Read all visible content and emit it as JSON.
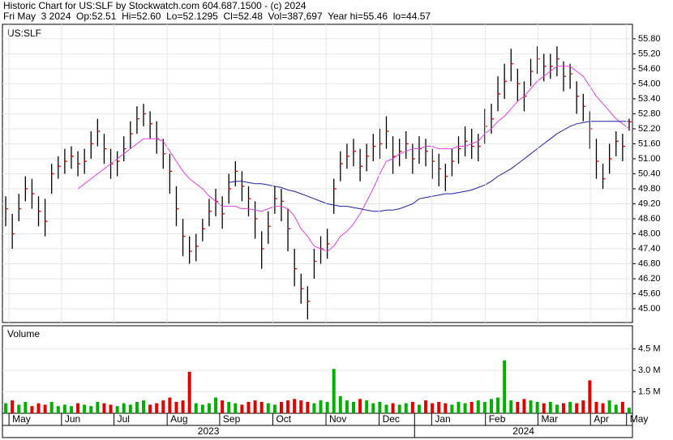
{
  "chart_data": [
    {
      "type": "ohlc",
      "title": "Historic Chart for US:SLF by Stockwatch.com 604.687.1500 - (c) 2024",
      "subtitle": "Fri May  3 2024  Op:52.51  Hi=52.60  Lo=52.1295  Cl=52.48  Vol=387,697  Year hi=55.46  lo=44.57",
      "label": "US:SLF",
      "xlim": [
        -0.5,
        95.5
      ],
      "ylim": [
        44.45,
        56.38
      ],
      "yticks": [
        {
          "value": 45.0,
          "label": "45.00"
        },
        {
          "value": 45.6,
          "label": "45.60"
        },
        {
          "value": 46.2,
          "label": "46.20"
        },
        {
          "value": 46.8,
          "label": "46.80"
        },
        {
          "value": 47.4,
          "label": "47.40"
        },
        {
          "value": 48.0,
          "label": "48.00"
        },
        {
          "value": 48.6,
          "label": "48.60"
        },
        {
          "value": 49.2,
          "label": "49.20"
        },
        {
          "value": 49.8,
          "label": "49.80"
        },
        {
          "value": 50.4,
          "label": "50.40"
        },
        {
          "value": 51.0,
          "label": "51.00"
        },
        {
          "value": 51.6,
          "label": "51.60"
        },
        {
          "value": 52.2,
          "label": "52.20"
        },
        {
          "value": 52.8,
          "label": "52.80"
        },
        {
          "value": 53.4,
          "label": "53.40"
        },
        {
          "value": 54.0,
          "label": "54.00"
        },
        {
          "value": 54.6,
          "label": "54.60"
        },
        {
          "value": 55.2,
          "label": "55.20"
        },
        {
          "value": 55.8,
          "label": "55.80"
        }
      ],
      "grid": true,
      "color": "#000000",
      "close_color": "#e00000",
      "high": [
        49.5,
        48.8,
        49.6,
        50.3,
        50.2,
        49.5,
        49.4,
        50.8,
        51.1,
        51.4,
        51.5,
        51.3,
        51.4,
        52.1,
        52.6,
        52.0,
        51.4,
        51.3,
        51.9,
        52.5,
        53.1,
        53.2,
        52.9,
        52.5,
        51.8,
        51.2,
        49.9,
        48.6,
        47.9,
        48.0,
        48.6,
        49.4,
        49.8,
        49.5,
        50.4,
        50.9,
        50.5,
        49.9,
        49.3,
        48.1,
        48.9,
        49.9,
        49.8,
        49.0,
        47.4,
        46.4,
        45.9,
        47.4,
        47.9,
        48.2,
        50.2,
        51.3,
        51.6,
        51.8,
        51.4,
        51.6,
        52.0,
        52.2,
        52.7,
        51.9,
        51.8,
        52.1,
        51.6,
        51.9,
        51.8,
        51.4,
        51.2,
        50.8,
        51.4,
        51.9,
        52.3,
        52.2,
        52.0,
        53.0,
        53.2,
        54.3,
        54.8,
        55.4,
        54.6,
        54.1,
        55.0,
        55.5,
        55.2,
        55.2,
        55.5,
        54.9,
        54.8,
        54.1,
        53.6,
        52.9,
        51.8,
        50.8,
        51.6,
        52.1,
        52.0,
        52.6
      ],
      "low": [
        48.3,
        47.4,
        48.5,
        49.3,
        49.0,
        48.3,
        47.9,
        49.6,
        50.2,
        50.4,
        50.6,
        50.3,
        50.4,
        51.0,
        51.5,
        50.8,
        50.2,
        50.3,
        50.9,
        51.4,
        52.0,
        52.3,
        51.8,
        51.2,
        50.6,
        49.6,
        48.3,
        47.1,
        46.8,
        46.9,
        47.7,
        48.3,
        48.7,
        48.2,
        49.2,
        49.9,
        49.3,
        48.7,
        47.8,
        46.6,
        47.6,
        48.8,
        48.5,
        47.3,
        45.9,
        45.2,
        44.57,
        46.2,
        46.8,
        47.0,
        48.8,
        50.1,
        50.6,
        50.7,
        50.1,
        50.5,
        50.9,
        51.0,
        51.4,
        50.4,
        50.7,
        51.0,
        50.4,
        50.8,
        50.7,
        50.2,
        49.9,
        49.7,
        50.3,
        50.8,
        51.1,
        51.0,
        50.9,
        51.6,
        52.0,
        52.9,
        53.4,
        54.1,
        53.3,
        52.9,
        53.9,
        54.4,
        54.1,
        54.2,
        54.3,
        53.7,
        53.8,
        52.8,
        52.5,
        51.4,
        50.2,
        49.8,
        50.4,
        51.1,
        50.9,
        52.1295
      ],
      "close": [
        49.0,
        48.0,
        49.0,
        49.8,
        49.6,
        48.9,
        48.5,
        50.4,
        50.7,
        50.9,
        51.1,
        50.8,
        50.9,
        51.6,
        52.1,
        51.4,
        50.8,
        50.9,
        51.4,
        52.0,
        52.6,
        52.8,
        52.4,
        51.8,
        51.2,
        50.5,
        49.0,
        47.9,
        47.3,
        47.5,
        48.2,
        48.9,
        49.3,
        48.8,
        49.8,
        50.5,
        49.9,
        49.4,
        48.6,
        47.4,
        48.3,
        49.4,
        49.3,
        48.2,
        46.6,
        45.8,
        45.3,
        46.9,
        47.4,
        47.6,
        49.8,
        50.8,
        51.1,
        51.3,
        50.7,
        51.1,
        51.5,
        51.6,
        52.1,
        51.1,
        51.3,
        51.6,
        51.0,
        51.4,
        51.3,
        50.9,
        50.6,
        50.3,
        50.9,
        51.4,
        51.7,
        51.5,
        51.5,
        52.3,
        52.6,
        53.6,
        54.1,
        54.8,
        54.0,
        53.5,
        54.5,
        55.0,
        54.7,
        54.7,
        55.0,
        54.3,
        54.4,
        53.5,
        53.1,
        52.2,
        50.9,
        50.2,
        51.0,
        51.7,
        51.5,
        52.48
      ],
      "lines": [
        {
          "color": "#e040e0",
          "values": [
            null,
            null,
            null,
            null,
            null,
            null,
            null,
            null,
            null,
            null,
            null,
            49.8,
            50.0,
            50.2,
            50.4,
            50.6,
            50.8,
            51.0,
            51.2,
            51.4,
            51.6,
            51.8,
            51.8,
            51.8,
            51.7,
            51.3,
            50.9,
            50.5,
            50.2,
            50.0,
            49.8,
            49.5,
            49.3,
            49.1,
            49.1,
            49.1,
            49.0,
            49.0,
            48.95,
            48.9,
            49.0,
            49.1,
            49.1,
            49.0,
            48.7,
            48.2,
            47.9,
            47.5,
            47.4,
            47.3,
            47.5,
            47.9,
            48.1,
            48.4,
            48.8,
            49.3,
            49.8,
            50.4,
            50.9,
            51.0,
            51.2,
            51.3,
            51.4,
            51.4,
            51.5,
            51.5,
            51.4,
            51.4,
            51.4,
            51.5,
            51.5,
            51.6,
            51.7,
            52.0,
            52.2,
            52.5,
            52.7,
            53.0,
            53.3,
            53.5,
            53.8,
            54.1,
            54.3,
            54.5,
            54.7,
            54.7,
            54.7,
            54.5,
            54.3,
            53.9,
            53.5,
            53.2,
            52.9,
            52.6,
            52.4,
            52.2
          ]
        },
        {
          "color": "#2020a0",
          "values": [
            null,
            null,
            null,
            null,
            null,
            null,
            null,
            null,
            null,
            null,
            null,
            null,
            null,
            null,
            null,
            null,
            null,
            null,
            null,
            null,
            null,
            null,
            null,
            null,
            null,
            null,
            null,
            null,
            null,
            null,
            null,
            null,
            null,
            null,
            50.05,
            50.1,
            50.1,
            50.05,
            50.0,
            50.0,
            49.95,
            49.9,
            49.85,
            49.75,
            49.7,
            49.6,
            49.5,
            49.4,
            49.3,
            49.2,
            49.15,
            49.1,
            49.1,
            49.05,
            49.0,
            48.95,
            48.9,
            48.9,
            48.95,
            48.95,
            49.0,
            49.1,
            49.2,
            49.4,
            49.45,
            49.5,
            49.55,
            49.6,
            49.6,
            49.65,
            49.7,
            49.75,
            49.85,
            49.95,
            50.1,
            50.3,
            50.45,
            50.6,
            50.8,
            51.0,
            51.2,
            51.4,
            51.6,
            51.8,
            52.0,
            52.15,
            52.3,
            52.4,
            52.45,
            52.5,
            52.5,
            52.5,
            52.5,
            52.5,
            52.5,
            52.5
          ]
        }
      ]
    },
    {
      "type": "bar",
      "title": "Volume",
      "xlim": [
        -0.5,
        95.5
      ],
      "ylim": [
        0,
        6.12
      ],
      "yticks": [
        {
          "value": 1.5,
          "label": "1.5 M"
        },
        {
          "value": 3.0,
          "label": "3.0 M"
        },
        {
          "value": 4.5,
          "label": "4.5 M"
        }
      ],
      "grid": true,
      "up_color": "#00b000",
      "down_color": "#e00000",
      "values": [
        0.7,
        0.9,
        0.6,
        0.8,
        0.5,
        0.7,
        0.6,
        0.8,
        0.5,
        0.6,
        0.5,
        0.7,
        0.6,
        0.5,
        0.8,
        0.7,
        0.6,
        0.5,
        0.7,
        0.6,
        0.8,
        0.9,
        0.6,
        0.7,
        0.9,
        1.1,
        0.8,
        0.9,
        2.9,
        0.7,
        0.6,
        0.7,
        1.1,
        0.9,
        0.8,
        0.7,
        0.6,
        0.8,
        0.9,
        0.8,
        0.7,
        0.6,
        0.8,
        0.9,
        1.0,
        0.9,
        0.8,
        0.7,
        0.9,
        0.8,
        3.1,
        1.2,
        0.9,
        0.8,
        1.0,
        0.9,
        0.7,
        0.8,
        0.6,
        0.7,
        0.6,
        0.7,
        0.8,
        0.6,
        0.9,
        0.7,
        0.8,
        0.7,
        0.6,
        0.8,
        0.7,
        0.8,
        0.9,
        0.8,
        1.0,
        1.1,
        3.7,
        0.9,
        0.8,
        1.0,
        0.9,
        0.8,
        0.7,
        0.8,
        0.6,
        0.7,
        0.8,
        0.7,
        0.9,
        2.3,
        0.8,
        0.7,
        0.9,
        0.6,
        0.8,
        0.387697
      ],
      "xticks": [
        {
          "value": 0.5,
          "label": "May"
        },
        {
          "value": 8.5,
          "label": "Jun"
        },
        {
          "value": 16.5,
          "label": "Jul"
        },
        {
          "value": 24.6,
          "label": "Aug"
        },
        {
          "value": 32.6,
          "label": "Sep"
        },
        {
          "value": 40.7,
          "label": "Oct"
        },
        {
          "value": 48.8,
          "label": "Nov"
        },
        {
          "value": 56.9,
          "label": "Dec"
        },
        {
          "value": 64.9,
          "label": "Jan"
        },
        {
          "value": 73.1,
          "label": "Feb"
        },
        {
          "value": 81.1,
          "label": "Mar"
        },
        {
          "value": 89.1,
          "label": "Apr"
        },
        {
          "value": 94.6,
          "label": "May"
        }
      ],
      "xgroups": [
        {
          "label": "2023",
          "start": -0.5,
          "end": 62.3
        },
        {
          "label": "2024",
          "start": 62.3,
          "end": 95.5
        }
      ]
    }
  ]
}
